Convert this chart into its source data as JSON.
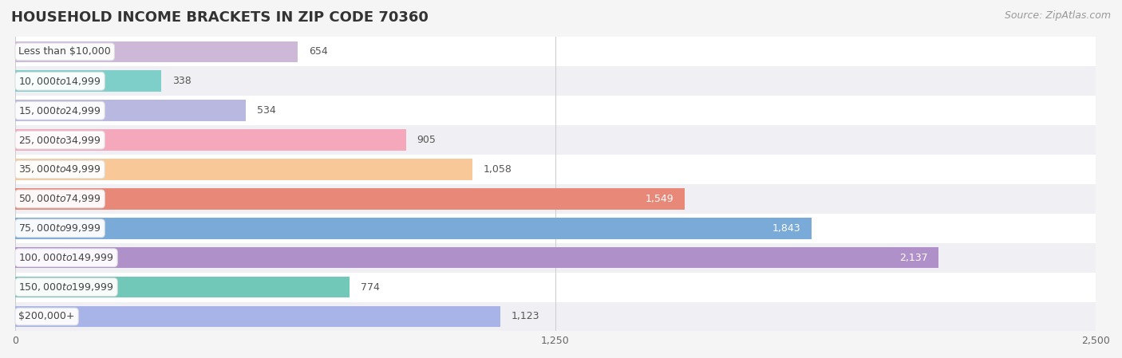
{
  "title": "HOUSEHOLD INCOME BRACKETS IN ZIP CODE 70360",
  "source": "Source: ZipAtlas.com",
  "categories": [
    "Less than $10,000",
    "$10,000 to $14,999",
    "$15,000 to $24,999",
    "$25,000 to $34,999",
    "$35,000 to $49,999",
    "$50,000 to $74,999",
    "$75,000 to $99,999",
    "$100,000 to $149,999",
    "$150,000 to $199,999",
    "$200,000+"
  ],
  "values": [
    654,
    338,
    534,
    905,
    1058,
    1549,
    1843,
    2137,
    774,
    1123
  ],
  "bar_colors": [
    "#cdb8d8",
    "#7ecfca",
    "#b8b8e0",
    "#f5a8bc",
    "#f8c898",
    "#e88878",
    "#7aaad8",
    "#b090c8",
    "#72c8b8",
    "#a8b4e8"
  ],
  "bar_height": 0.72,
  "xlim": [
    0,
    2500
  ],
  "xticks": [
    0,
    1250,
    2500
  ],
  "xticklabels": [
    "0",
    "1,250",
    "2,500"
  ],
  "label_inside_threshold": 1200,
  "background_color": "#f5f5f5",
  "row_bg_odd": "#f0f0f4",
  "row_bg_even": "#ffffff",
  "title_fontsize": 13,
  "source_fontsize": 9,
  "tick_fontsize": 9,
  "bar_label_fontsize": 9,
  "category_fontsize": 9
}
